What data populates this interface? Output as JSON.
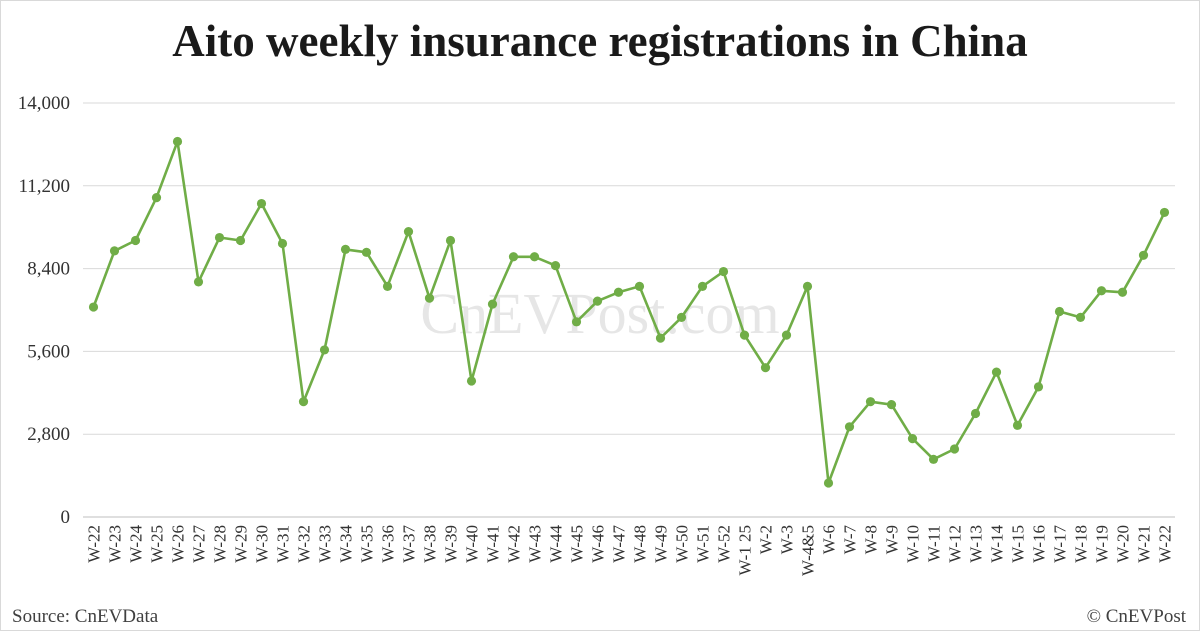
{
  "chart_data": {
    "type": "line",
    "title": "Aito weekly insurance registrations in China",
    "xlabel": "",
    "ylabel": "",
    "ylim": [
      0,
      14000
    ],
    "yticks": [
      0,
      2800,
      5600,
      8400,
      11200,
      14000
    ],
    "ytick_labels": [
      "0",
      "2,800",
      "5,600",
      "8,400",
      "11,200",
      "14,000"
    ],
    "grid": true,
    "legend": "none",
    "series_color": "#70ad47",
    "grid_color": "#d9d9d9",
    "categories": [
      "W-22",
      "W-23",
      "W-24",
      "W-25",
      "W-26",
      "W-27",
      "W-28",
      "W-29",
      "W-30",
      "W-31",
      "W-32",
      "W-33",
      "W-34",
      "W-35",
      "W-36",
      "W-37",
      "W-38",
      "W-39",
      "W-40",
      "W-41",
      "W-42",
      "W-43",
      "W-44",
      "W-45",
      "W-46",
      "W-47",
      "W-48",
      "W-49",
      "W-50",
      "W-51",
      "W-52",
      "W-1 25",
      "W-2",
      "W-3",
      "W-4&5",
      "W-6",
      "W-7",
      "W-8",
      "W-9",
      "W-10",
      "W-11",
      "W-12",
      "W-13",
      "W-14",
      "W-15",
      "W-16",
      "W-17",
      "W-18",
      "W-19",
      "W-20",
      "W-21",
      "W-22"
    ],
    "series": [
      {
        "values": [
          7100,
          9000,
          9350,
          10800,
          12700,
          7950,
          9450,
          9350,
          10600,
          9250,
          3900,
          5650,
          9050,
          8950,
          7800,
          9650,
          7400,
          9350,
          4600,
          7200,
          8800,
          8800,
          8500,
          6600,
          7300,
          7600,
          7800,
          6050,
          6750,
          7800,
          8300,
          6150,
          5050,
          6150,
          7800,
          1150,
          3050,
          3900,
          3800,
          2650,
          1950,
          2300,
          3500,
          4900,
          3100,
          4400,
          6950,
          6750,
          7650,
          7600,
          8850,
          10300
        ]
      }
    ]
  },
  "watermark": "CnEVPost.com",
  "footer": {
    "source": "Source: CnEVData",
    "copyright": "© CnEVPost"
  }
}
